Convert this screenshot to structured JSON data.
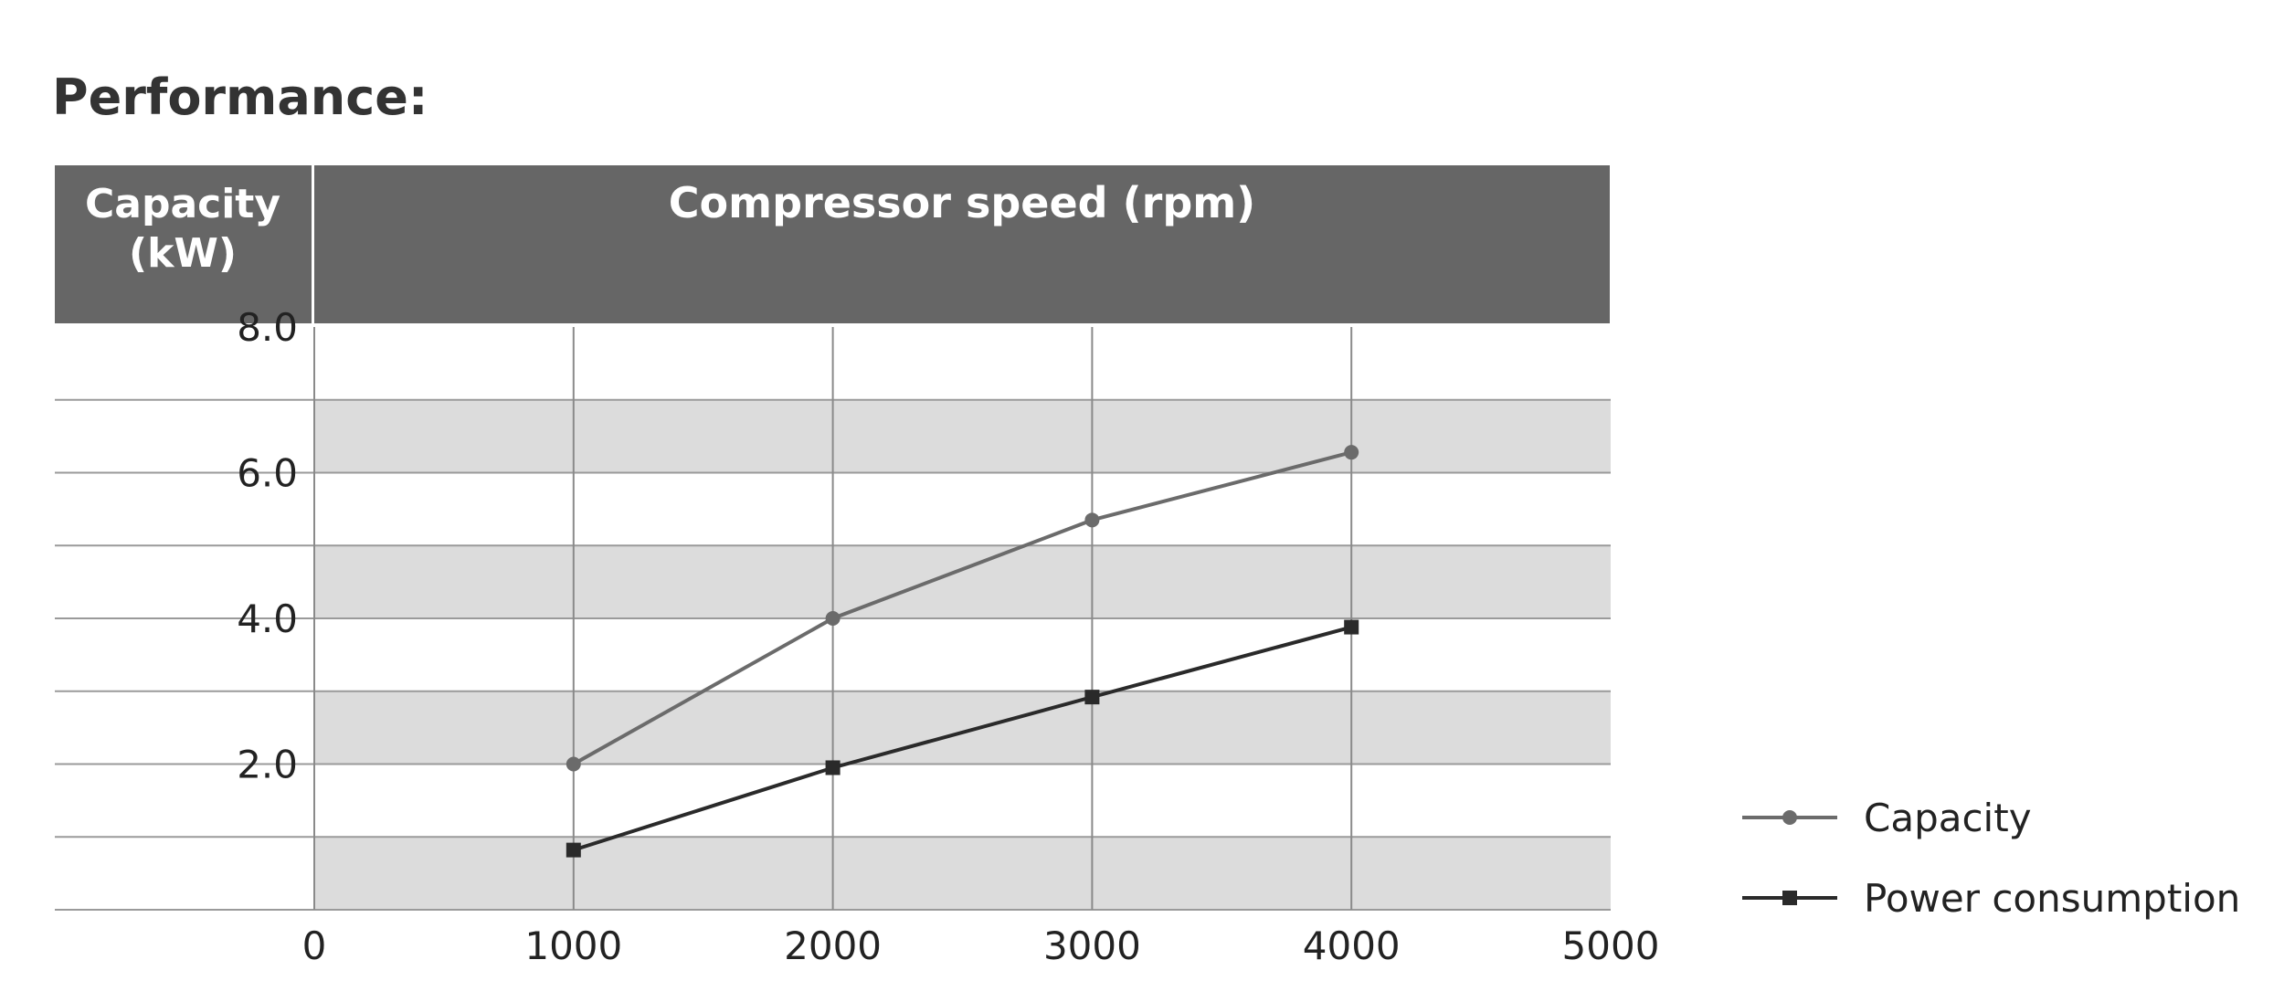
{
  "page": {
    "title": "Performance:"
  },
  "chart_data": {
    "type": "line",
    "header_left": [
      "Capacity",
      "(kW)"
    ],
    "header_right": "Compressor speed (rpm)",
    "x_ticks": [
      "0",
      "1000",
      "2000",
      "3000",
      "4000",
      "5000"
    ],
    "y_ticks": [
      "8.0",
      "6.0",
      "4.0",
      "2.0"
    ],
    "xlim": [
      0,
      5000
    ],
    "ylim": [
      0,
      8
    ],
    "x": [
      1000,
      2000,
      3000,
      4000
    ],
    "series": [
      {
        "name": "Capacity",
        "values": [
          2.0,
          4.0,
          5.35,
          6.28
        ],
        "marker": "circle",
        "color": "#6b6b6b"
      },
      {
        "name": "Power consumption",
        "values": [
          0.82,
          1.95,
          2.92,
          3.88
        ],
        "marker": "square",
        "color": "#2a2a2a"
      }
    ],
    "grid": true,
    "band_color": "#dcdcdc",
    "header_color": "#666666",
    "legend_position": "bottom-right"
  }
}
